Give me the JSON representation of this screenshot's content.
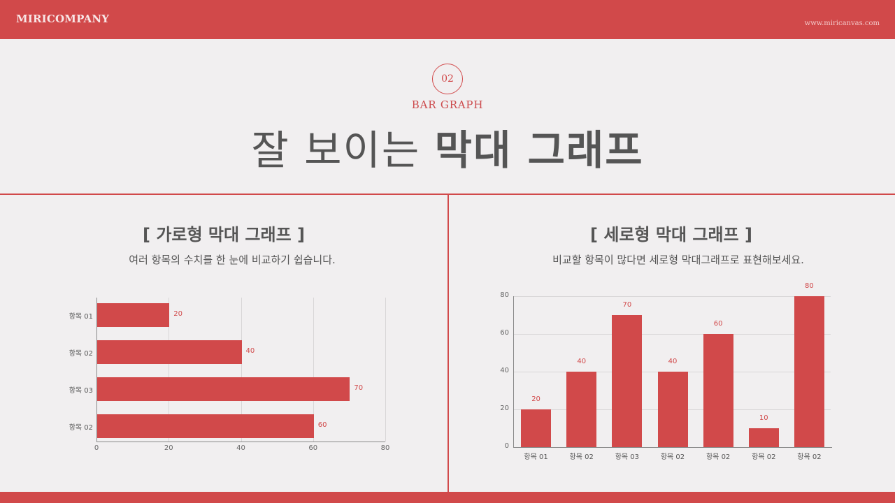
{
  "header": {
    "brand": "MIRICOMPANY",
    "website": "www.miricanvas.com"
  },
  "section": {
    "number": "02",
    "subtitle": "BAR GRAPH",
    "title_light": "잘 보이는",
    "title_bold": "막대 그래프"
  },
  "left_panel": {
    "title": "[ 가로형 막대 그래프 ]",
    "description": "여러 항목의 수치를 한 눈에 비교하기 쉽습니다."
  },
  "right_panel": {
    "title": "[ 세로형 막대 그래프 ]",
    "description": "비교할 항목이 많다면 세로형 막대그래프로 표현해보세요."
  },
  "colors": {
    "accent": "#d1494a",
    "background": "#f1eff0",
    "text": "#555555"
  },
  "chart_data": [
    {
      "type": "bar",
      "orientation": "horizontal",
      "title": "[ 가로형 막대 그래프 ]",
      "categories": [
        "항목 01",
        "항목 02",
        "항목 03",
        "항목 02"
      ],
      "values": [
        20,
        40,
        70,
        60
      ],
      "xlabel": "",
      "ylabel": "",
      "xlim": [
        0,
        80
      ],
      "xticks": [
        "0",
        "20",
        "40",
        "60",
        "80"
      ],
      "grid": true,
      "data_labels": true,
      "color": "#d1494a"
    },
    {
      "type": "bar",
      "orientation": "vertical",
      "title": "[ 세로형 막대 그래프 ]",
      "categories": [
        "항목 01",
        "항목 02",
        "항목 03",
        "항목 02",
        "항목 02",
        "항목 02",
        "항목 02"
      ],
      "values": [
        20,
        40,
        70,
        40,
        60,
        10,
        80
      ],
      "xlabel": "",
      "ylabel": "",
      "ylim": [
        0,
        80
      ],
      "yticks": [
        "0",
        "20",
        "40",
        "60",
        "80"
      ],
      "grid": true,
      "data_labels": true,
      "color": "#d1494a"
    }
  ]
}
